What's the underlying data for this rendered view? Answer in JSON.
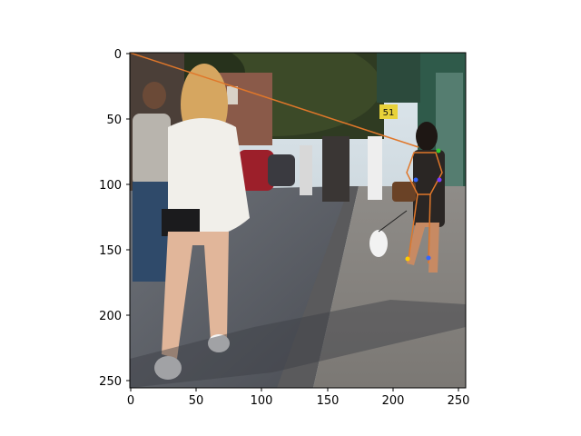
{
  "figure": {
    "x_ticks": [
      "0",
      "50",
      "100",
      "150",
      "200",
      "250"
    ],
    "y_ticks": [
      "0",
      "50",
      "100",
      "150",
      "200",
      "250"
    ],
    "x_range": [
      0,
      256
    ],
    "y_range": [
      0,
      256
    ],
    "y_inverted": true
  },
  "image": {
    "description": "Street sidewalk scene: blonde woman in white top walking away, man in grey shirt at left, woman with small white dog on leash at right, shop fronts and parked cars",
    "sign_text": "51"
  },
  "overlay": {
    "color": "#e0772a",
    "pose_line": [
      [
        0,
        0
      ],
      [
        220,
        72
      ]
    ],
    "keypoint_colors": [
      "#3366ff",
      "#7a3cff",
      "#33cc33",
      "#ffcc00"
    ]
  }
}
